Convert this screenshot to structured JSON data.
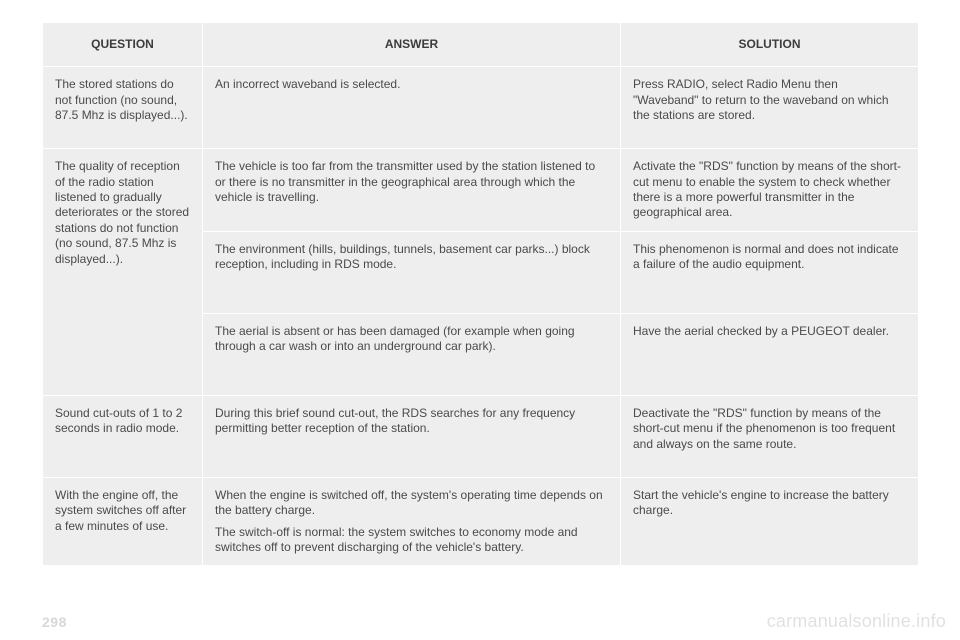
{
  "headers": {
    "question": "QUESTION",
    "answer": "ANSWER",
    "solution": "SOLUTION"
  },
  "rows": {
    "r1": {
      "q": "The stored stations do not function (no sound, 87.5 Mhz is displayed...).",
      "a": "An incorrect waveband is selected.",
      "s": "Press RADIO, select Radio Menu then \"Waveband\" to return to the waveband on which the stations are stored."
    },
    "r2": {
      "q": "The quality of reception of the radio station listened to gradually deteriorates or the stored stations do not function (no sound, 87.5 Mhz is displayed...).",
      "a1": "The vehicle is too far from the transmitter used by the station listened to or there is no transmitter in the geographical area through which the vehicle is travelling.",
      "s1": "Activate the \"RDS\" function by means of the short-cut menu to enable the system to check whether there is a more powerful transmitter in the geographical area.",
      "a2": "The environment (hills, buildings, tunnels, basement car parks...) block reception, including in RDS mode.",
      "s2": "This phenomenon is normal and does not indicate a failure of the audio equipment.",
      "a3": "The aerial is absent or has been damaged (for example when going through a car wash or into an underground car park).",
      "s3": "Have the aerial checked by a PEUGEOT dealer."
    },
    "r3": {
      "q": "Sound cut-outs of 1 to 2 seconds in radio mode.",
      "a": "During this brief sound cut-out, the RDS searches for any frequency permitting better reception of the station.",
      "s": "Deactivate the \"RDS\" function by means of the short-cut menu if the phenomenon is too frequent and always on the same route."
    },
    "r4": {
      "q": "With the engine off, the system switches off after a few minutes of use.",
      "a1": "When the engine is switched off, the system's operating time depends on the battery charge.",
      "a2": "The switch-off is normal: the system switches to economy mode and switches off to prevent discharging of the vehicle's battery.",
      "s": "Start the vehicle's engine to increase the battery charge."
    }
  },
  "page_number": "298",
  "watermark": "carmanualsonline.info"
}
